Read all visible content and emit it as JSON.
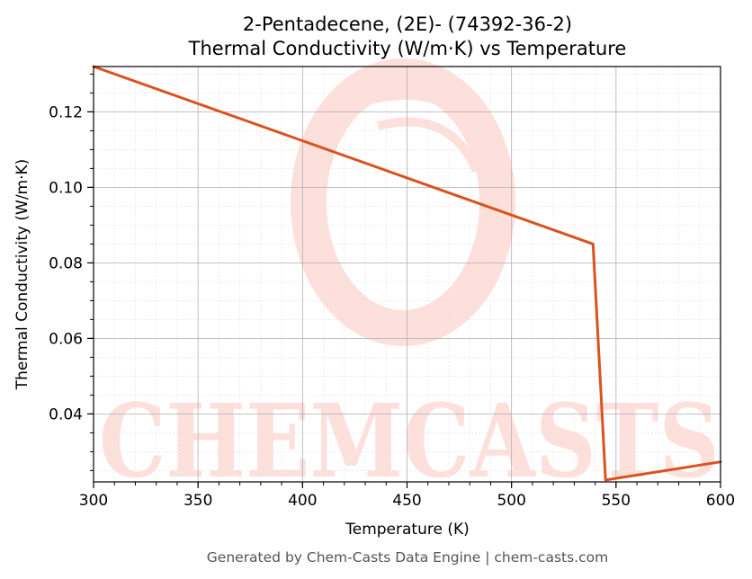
{
  "chart_data": {
    "type": "line",
    "title": "2-Pentadecene, (2E)- (74392-36-2)",
    "subtitle": "Thermal Conductivity (W/m·K) vs Temperature",
    "xlabel": "Temperature (K)",
    "ylabel": "Thermal Conductivity (W/m·K)",
    "xlim": [
      300,
      600
    ],
    "ylim": [
      0.022,
      0.132
    ],
    "xticks": [
      300,
      350,
      400,
      450,
      500,
      550,
      600
    ],
    "yticks": [
      0.04,
      0.06,
      0.08,
      0.1,
      0.12
    ],
    "x_tick_labels": [
      "300",
      "350",
      "400",
      "450",
      "500",
      "550",
      "600"
    ],
    "y_tick_labels": [
      "0.04",
      "0.06",
      "0.08",
      "0.10",
      "0.12"
    ],
    "grid": true,
    "series": [
      {
        "color": "#d9531e",
        "x": [
          300,
          539,
          545,
          600
        ],
        "y": [
          0.132,
          0.085,
          0.0225,
          0.0273
        ]
      }
    ]
  },
  "watermark": {
    "text": "CHEMCASTS",
    "color": "#fde0dc"
  },
  "footer": "Generated by Chem-Casts Data Engine | chem-casts.com"
}
